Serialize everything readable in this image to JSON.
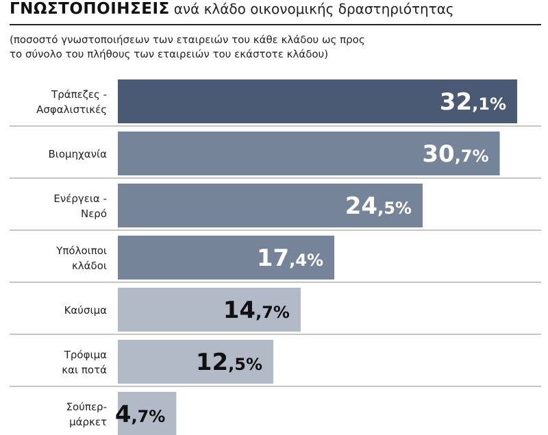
{
  "header": {
    "title_bold": "ΓΝΩΣΤΟΠΟΙΗΣΕΙΣ",
    "title_rest": "ανά κλάδο οικονομικής δραστηριότητας",
    "subtitle_line1": "(ποσοστό γνωστοποιήσεων των εταιρειών του κάθε κλάδου ως προς",
    "subtitle_line2": "το σύνολο του πλήθους των εταιρειών του εκάστοτε κλάδου)"
  },
  "chart_data": {
    "type": "bar",
    "orientation": "horizontal",
    "categories": [
      [
        "Τράπεζες -",
        "Ασφαλιστικές"
      ],
      [
        "Βιομηχανία"
      ],
      [
        "Ενέργεια -",
        "Νερό"
      ],
      [
        "Υπόλοιποι",
        "κλάδοι"
      ],
      [
        "Καύσιμα"
      ],
      [
        "Τρόφιμα",
        "και ποτά"
      ],
      [
        "Σούπερ-",
        "μάρκετ"
      ]
    ],
    "values": [
      32.1,
      30.7,
      24.5,
      17.4,
      14.7,
      12.5,
      4.7
    ],
    "value_labels": [
      [
        "32",
        ",1%"
      ],
      [
        "30",
        ",7%"
      ],
      [
        "24",
        ",5%"
      ],
      [
        "17",
        ",4%"
      ],
      [
        "14",
        ",7%"
      ],
      [
        "12",
        ",5%"
      ],
      [
        "4",
        ",7%"
      ]
    ],
    "bar_colors": [
      "#4a5a75",
      "#768499",
      "#768499",
      "#768499",
      "#b3bac7",
      "#b3bac7",
      "#b3bac7"
    ],
    "value_colors": [
      "#ffffff",
      "#ffffff",
      "#ffffff",
      "#ffffff",
      "#111111",
      "#111111",
      "#111111"
    ],
    "xlim": [
      0,
      32.1
    ],
    "separator_color": "#8c8c8c"
  }
}
